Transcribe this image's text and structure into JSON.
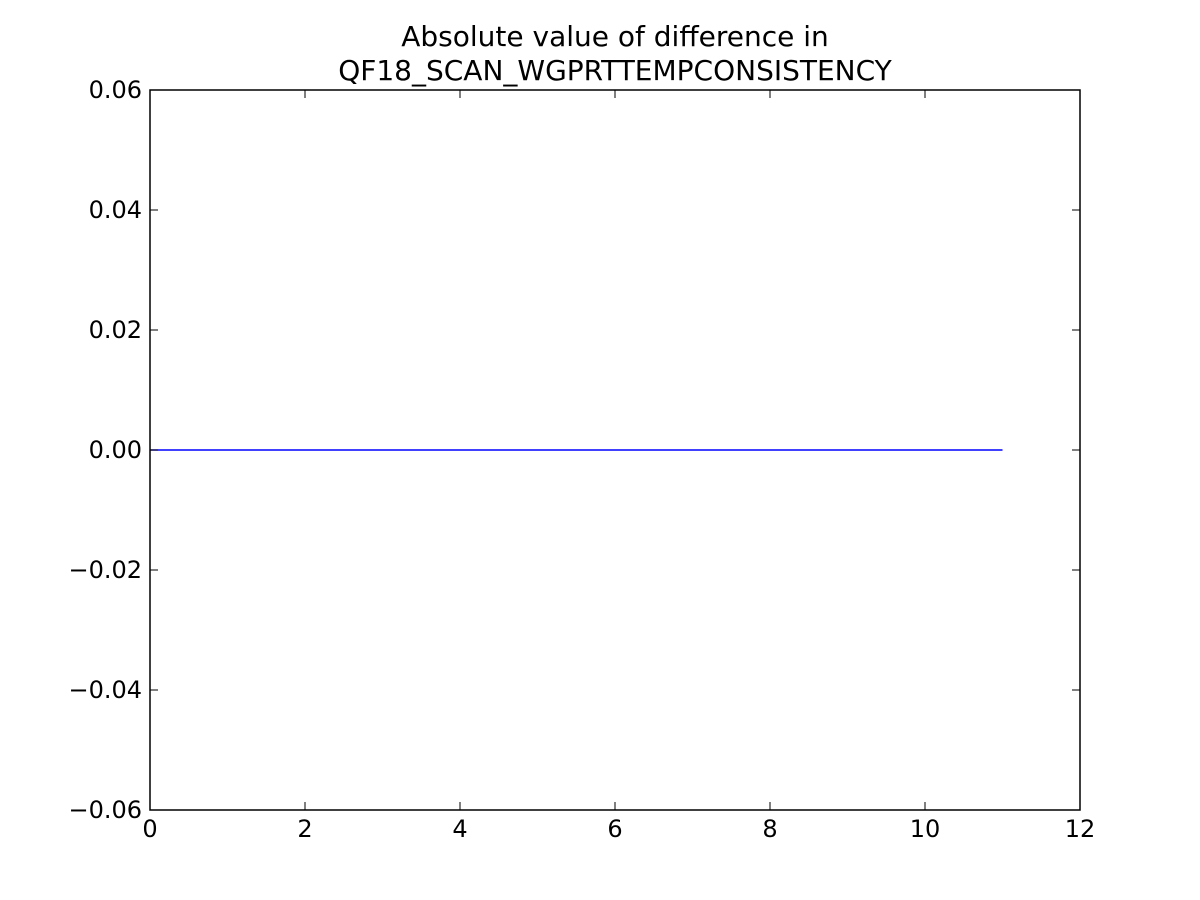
{
  "chart_data": {
    "type": "line",
    "title_lines": [
      "Absolute value of difference in",
      "QF18_SCAN_WGPRTTEMPCONSISTENCY"
    ],
    "xlabel": "",
    "ylabel": "",
    "xlim": [
      0,
      12
    ],
    "ylim": [
      -0.06,
      0.06
    ],
    "x_ticks": [
      0,
      2,
      4,
      6,
      8,
      10,
      12
    ],
    "x_tick_labels": [
      "0",
      "2",
      "4",
      "6",
      "8",
      "10",
      "12"
    ],
    "y_ticks": [
      -0.06,
      -0.04,
      -0.02,
      0.0,
      0.02,
      0.04,
      0.06
    ],
    "y_tick_labels": [
      "−0.06",
      "−0.04",
      "−0.02",
      "0.00",
      "0.02",
      "0.04",
      "0.06"
    ],
    "grid": false,
    "series": [
      {
        "color": "#0000ff",
        "x": [
          0,
          1,
          2,
          3,
          4,
          5,
          6,
          7,
          8,
          9,
          10,
          11
        ],
        "y": [
          0,
          0,
          0,
          0,
          0,
          0,
          0,
          0,
          0,
          0,
          0,
          0
        ]
      }
    ]
  }
}
